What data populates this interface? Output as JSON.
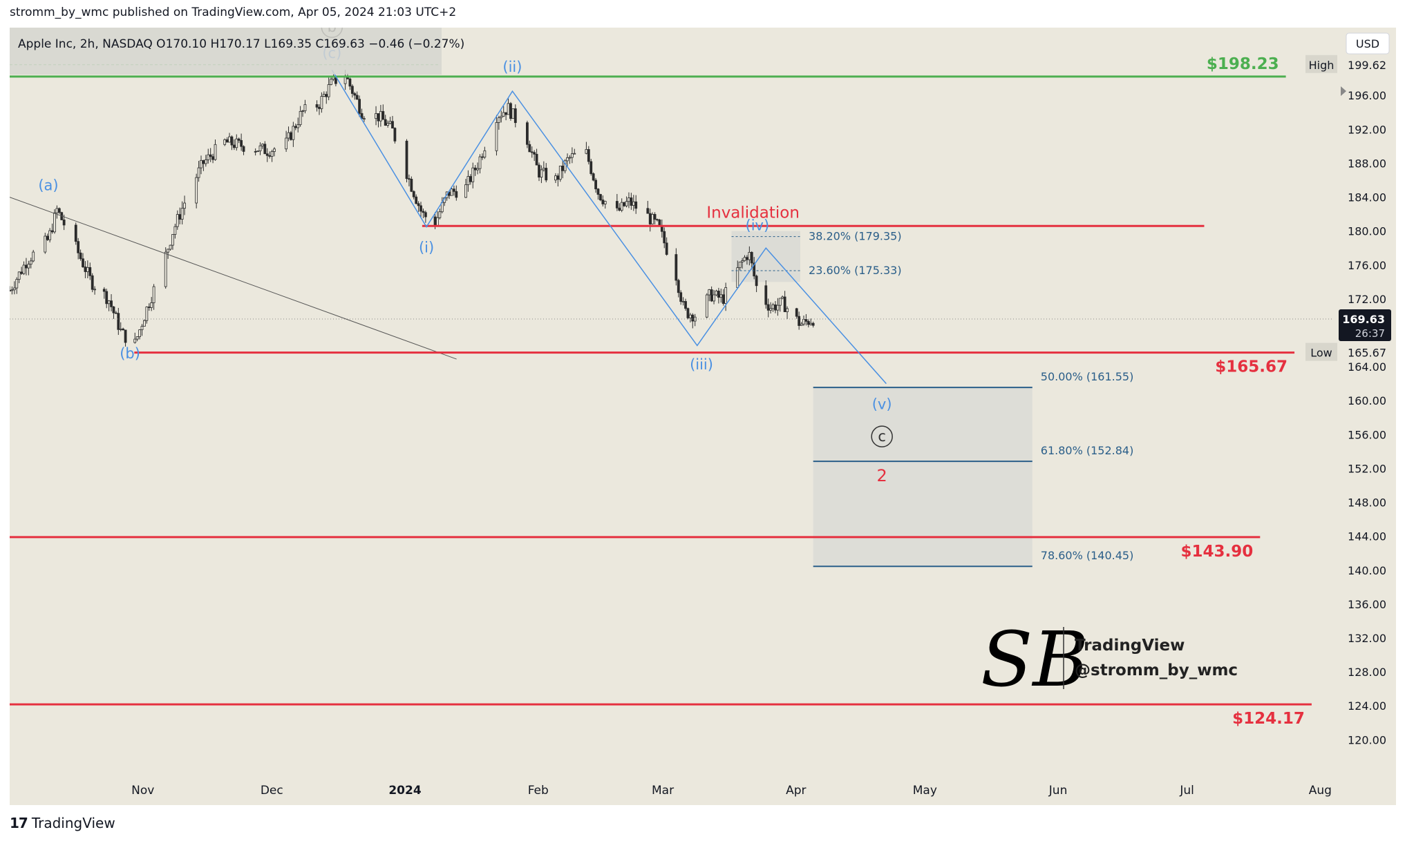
{
  "header": {
    "published_text": "stromm_by_wmc published on TradingView.com, Apr 05, 2024 21:03 UTC+2"
  },
  "footer": {
    "brand": "TradingView"
  },
  "colors": {
    "background": "#ebe8dd",
    "red_line": "#e5303f",
    "green_line": "#4caf50",
    "wave_blue": "#4a90e2",
    "fib_line": "#2a5e89",
    "fib_zone": "#dcdcd6",
    "candle": "#2b2b2b"
  },
  "chart_data": {
    "type": "candlestick",
    "legend_text": "Apple Inc, 2h, NASDAQ  O170.10  H170.17  L169.35  C169.63  −0.46 (−0.27%)",
    "currency": "USD",
    "ylim": [
      117.5,
      204.0
    ],
    "y_ticks": [
      196,
      192,
      188,
      184,
      180,
      176,
      172,
      164,
      160,
      156,
      152,
      148,
      144,
      140,
      136,
      132,
      128,
      124,
      120
    ],
    "y_tick_labels": [
      "196.00",
      "192.00",
      "188.00",
      "184.00",
      "180.00",
      "176.00",
      "172.00",
      "164.00",
      "160.00",
      "156.00",
      "152.00",
      "148.00",
      "144.00",
      "140.00",
      "136.00",
      "132.00",
      "128.00",
      "124.00",
      "120.00"
    ],
    "x_labels": [
      {
        "label": "Nov",
        "date": "2023-11-01"
      },
      {
        "label": "Dec",
        "date": "2023-12-01"
      },
      {
        "label": "2024",
        "date": "2024-01-01",
        "bold": true
      },
      {
        "label": "Feb",
        "date": "2024-02-01"
      },
      {
        "label": "Mar",
        "date": "2024-03-01"
      },
      {
        "label": "Apr",
        "date": "2024-04-01"
      },
      {
        "label": "May",
        "date": "2024-05-01"
      },
      {
        "label": "Jun",
        "date": "2024-06-01"
      },
      {
        "label": "Jul",
        "date": "2024-07-01"
      },
      {
        "label": "Aug",
        "date": "2024-08-01"
      }
    ],
    "x_range": [
      "2023-10-01",
      "2024-08-04"
    ],
    "high": {
      "label": "High",
      "value": "199.62"
    },
    "low": {
      "label": "Low",
      "value": "165.67"
    },
    "last_price": {
      "value": "169.63",
      "countdown": "26:37",
      "price": 169.63
    },
    "price_path": [
      {
        "date": "2023-10-01",
        "price": 173.0
      },
      {
        "date": "2023-10-05",
        "price": 176.5
      },
      {
        "date": "2023-10-10",
        "price": 179.0
      },
      {
        "date": "2023-10-12",
        "price": 182.5
      },
      {
        "date": "2023-10-16",
        "price": 178.5
      },
      {
        "date": "2023-10-20",
        "price": 174.0
      },
      {
        "date": "2023-10-24",
        "price": 172.0
      },
      {
        "date": "2023-10-27",
        "price": 168.0
      },
      {
        "date": "2023-10-30",
        "price": 166.5
      },
      {
        "date": "2023-11-02",
        "price": 171.0
      },
      {
        "date": "2023-11-05",
        "price": 175.0
      },
      {
        "date": "2023-11-08",
        "price": 180.0
      },
      {
        "date": "2023-11-12",
        "price": 185.0
      },
      {
        "date": "2023-11-15",
        "price": 188.0
      },
      {
        "date": "2023-11-20",
        "price": 190.5
      },
      {
        "date": "2023-11-25",
        "price": 190.0
      },
      {
        "date": "2023-11-30",
        "price": 189.5
      },
      {
        "date": "2023-12-04",
        "price": 190.0
      },
      {
        "date": "2023-12-08",
        "price": 194.0
      },
      {
        "date": "2023-12-12",
        "price": 195.0
      },
      {
        "date": "2023-12-15",
        "price": 197.5
      },
      {
        "date": "2023-12-18",
        "price": 198.5
      },
      {
        "date": "2023-12-22",
        "price": 194.0
      },
      {
        "date": "2023-12-26",
        "price": 193.5
      },
      {
        "date": "2023-12-29",
        "price": 192.0
      },
      {
        "date": "2024-01-02",
        "price": 186.0
      },
      {
        "date": "2024-01-05",
        "price": 182.0
      },
      {
        "date": "2024-01-08",
        "price": 181.0
      },
      {
        "date": "2024-01-11",
        "price": 184.5
      },
      {
        "date": "2024-01-15",
        "price": 185.0
      },
      {
        "date": "2024-01-18",
        "price": 188.0
      },
      {
        "date": "2024-01-22",
        "price": 193.5
      },
      {
        "date": "2024-01-25",
        "price": 194.5
      },
      {
        "date": "2024-01-29",
        "price": 191.5
      },
      {
        "date": "2024-02-01",
        "price": 187.0
      },
      {
        "date": "2024-02-05",
        "price": 186.0
      },
      {
        "date": "2024-02-08",
        "price": 188.5
      },
      {
        "date": "2024-02-12",
        "price": 189.5
      },
      {
        "date": "2024-02-15",
        "price": 184.5
      },
      {
        "date": "2024-02-19",
        "price": 182.0
      },
      {
        "date": "2024-02-22",
        "price": 183.5
      },
      {
        "date": "2024-02-26",
        "price": 182.0
      },
      {
        "date": "2024-02-29",
        "price": 180.5
      },
      {
        "date": "2024-03-04",
        "price": 175.0
      },
      {
        "date": "2024-03-06",
        "price": 170.5
      },
      {
        "date": "2024-03-09",
        "price": 170.0
      },
      {
        "date": "2024-03-12",
        "price": 172.5
      },
      {
        "date": "2024-03-15",
        "price": 172.0
      },
      {
        "date": "2024-03-19",
        "price": 176.0
      },
      {
        "date": "2024-03-21",
        "price": 177.5
      },
      {
        "date": "2024-03-23",
        "price": 173.0
      },
      {
        "date": "2024-03-26",
        "price": 171.0
      },
      {
        "date": "2024-03-29",
        "price": 171.5
      },
      {
        "date": "2024-04-02",
        "price": 169.0
      },
      {
        "date": "2024-04-05",
        "price": 169.63
      }
    ],
    "horizontal_levels": [
      {
        "price": 198.23,
        "label": "$198.23",
        "color": "green",
        "from": "2023-10-01",
        "to": "2024-07-24"
      },
      {
        "price": 180.6,
        "label": "Invalidation",
        "color": "red",
        "from": "2024-01-05",
        "to": "2024-07-05",
        "label_date": "2024-03-22",
        "label_above": true
      },
      {
        "price": 165.67,
        "label": "$165.67",
        "color": "red",
        "from": "2023-10-30",
        "to": "2024-07-26"
      },
      {
        "price": 143.9,
        "label": "$143.90",
        "color": "red",
        "from": "2023-10-01",
        "to": "2024-07-18"
      },
      {
        "price": 124.17,
        "label": "$124.17",
        "color": "red",
        "from": "2023-10-01",
        "to": "2024-07-30"
      }
    ],
    "wave_path": [
      {
        "date": "2023-12-15",
        "price": 199.0
      },
      {
        "date": "2024-01-06",
        "price": 180.5
      },
      {
        "date": "2024-01-26",
        "price": 196.5
      },
      {
        "date": "2024-03-09",
        "price": 166.5
      },
      {
        "date": "2024-03-25",
        "price": 178.0
      },
      {
        "date": "2024-04-22",
        "price": 162.0
      }
    ],
    "trendline": {
      "from": {
        "date": "2023-10-01",
        "price": 184.0
      },
      "to": {
        "date": "2024-01-13",
        "price": 164.9
      }
    },
    "wave_labels": [
      {
        "text": "(a)",
        "date": "2023-10-10",
        "price": 184.8,
        "color": "blue"
      },
      {
        "text": "(b)",
        "date": "2023-10-29",
        "price": 165.0,
        "color": "blue"
      },
      {
        "text": "(c)",
        "date": "2023-12-15",
        "price": 200.4,
        "color": "blue"
      },
      {
        "text": "b",
        "date": "2023-12-15",
        "price": 203.5,
        "color": "dark",
        "circled": true
      },
      {
        "text": "(i)",
        "date": "2024-01-06",
        "price": 177.5,
        "color": "blue"
      },
      {
        "text": "(ii)",
        "date": "2024-01-26",
        "price": 198.8,
        "color": "blue"
      },
      {
        "text": "(iii)",
        "date": "2024-03-10",
        "price": 163.7,
        "color": "blue"
      },
      {
        "text": "(iv)",
        "date": "2024-03-23",
        "price": 180.1,
        "color": "blue"
      },
      {
        "text": "(v)",
        "date": "2024-04-21",
        "price": 159.0,
        "color": "blue"
      },
      {
        "text": "c",
        "date": "2024-04-21",
        "price": 155.2,
        "color": "dark",
        "circled": true
      },
      {
        "text": "2",
        "date": "2024-04-21",
        "price": 150.5,
        "color": "red"
      }
    ],
    "fib_upper": {
      "box": {
        "from": "2024-03-17",
        "to": "2024-04-02",
        "top": 180.0,
        "bottom": 174.0
      },
      "levels": [
        {
          "price": 179.35,
          "label": "38.20% (179.35)",
          "from": "2024-03-17",
          "to": "2024-04-02"
        },
        {
          "price": 175.33,
          "label": "23.60% (175.33)",
          "from": "2024-03-17",
          "to": "2024-04-02"
        }
      ]
    },
    "fib_lower": {
      "box": {
        "from": "2024-04-05",
        "to": "2024-05-26",
        "top": 161.55,
        "bottom": 140.45
      },
      "levels": [
        {
          "price": 161.55,
          "label": "50.00% (161.55)"
        },
        {
          "price": 152.84,
          "label": "61.80% (152.84)"
        },
        {
          "price": 140.45,
          "label": "78.60% (140.45)"
        }
      ]
    },
    "watermark": {
      "line1": "TradingView",
      "line2": "@stromm_by_wmc"
    }
  }
}
